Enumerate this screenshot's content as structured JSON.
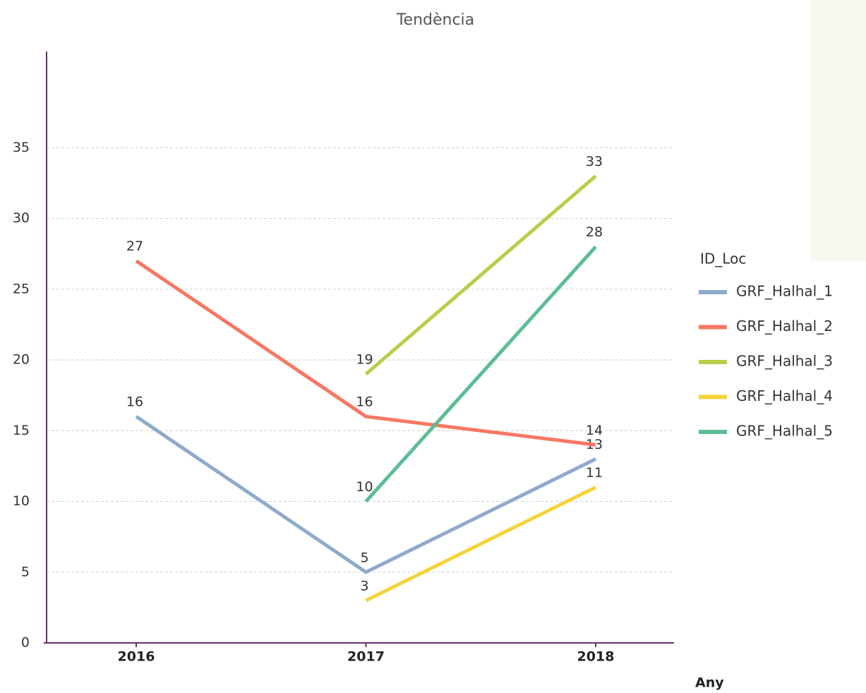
{
  "chart_data": {
    "type": "line",
    "title": "Tendència",
    "x_label": "Any",
    "legend_title": "ID_Loc",
    "categories": [
      "2016",
      "2017",
      "2018"
    ],
    "series": [
      {
        "name": "GRF_Halhal_1",
        "color": "#8eaacb",
        "values": [
          16,
          5,
          13
        ]
      },
      {
        "name": "GRF_Halhal_2",
        "color": "#f87762",
        "values": [
          27,
          16,
          14
        ]
      },
      {
        "name": "GRF_Halhal_3",
        "color": "#b5cf4a",
        "values": [
          null,
          19,
          33
        ]
      },
      {
        "name": "GRF_Halhal_4",
        "color": "#f5d33a",
        "values": [
          null,
          3,
          11
        ]
      },
      {
        "name": "GRF_Halhal_5",
        "color": "#5cbd94",
        "values": [
          null,
          10,
          28
        ]
      }
    ],
    "ylim": [
      0,
      42
    ],
    "yticks": [
      0,
      5,
      10,
      15,
      20,
      25,
      30,
      35
    ],
    "grid": true,
    "legend": "right"
  }
}
